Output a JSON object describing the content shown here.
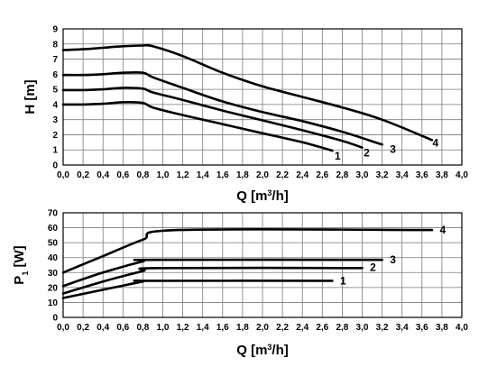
{
  "chart_data": [
    {
      "type": "line",
      "xlabel": "Q [m³/h]",
      "ylabel": "H [m]",
      "xlim": [
        0,
        4.0
      ],
      "ylim": [
        0,
        9
      ],
      "xticks": [
        "0,0",
        "0,2",
        "0,4",
        "0,6",
        "0,8",
        "1,0",
        "1,2",
        "1,4",
        "1,6",
        "1,8",
        "2,0",
        "2,2",
        "2,4",
        "2,6",
        "2,8",
        "3,0",
        "3,2",
        "3,4",
        "3,6",
        "3,8",
        "4,0"
      ],
      "yticks": [
        "0",
        "1",
        "2",
        "3",
        "4",
        "5",
        "6",
        "7",
        "8",
        "9"
      ],
      "grid": true,
      "series": [
        {
          "name": "1",
          "x": [
            0.0,
            0.2,
            0.4,
            0.6,
            0.8,
            0.9,
            1.2,
            1.6,
            2.0,
            2.4,
            2.7
          ],
          "y": [
            4.0,
            4.0,
            4.05,
            4.15,
            4.1,
            3.8,
            3.3,
            2.7,
            2.1,
            1.5,
            0.95
          ]
        },
        {
          "name": "2",
          "x": [
            0.0,
            0.2,
            0.4,
            0.6,
            0.8,
            0.9,
            1.2,
            1.6,
            2.0,
            2.4,
            2.8,
            3.0
          ],
          "y": [
            4.95,
            4.95,
            5.0,
            5.1,
            5.05,
            4.8,
            4.3,
            3.6,
            2.95,
            2.3,
            1.6,
            1.15
          ]
        },
        {
          "name": "3",
          "x": [
            0.0,
            0.2,
            0.4,
            0.6,
            0.8,
            0.9,
            1.2,
            1.6,
            2.0,
            2.4,
            2.8,
            3.2
          ],
          "y": [
            5.95,
            5.95,
            6.0,
            6.1,
            6.1,
            5.8,
            5.1,
            4.2,
            3.5,
            2.9,
            2.2,
            1.35
          ]
        },
        {
          "name": "4",
          "x": [
            0.0,
            0.2,
            0.4,
            0.6,
            0.8,
            0.9,
            1.2,
            1.6,
            2.0,
            2.4,
            2.8,
            3.2,
            3.7
          ],
          "y": [
            7.6,
            7.65,
            7.75,
            7.85,
            7.9,
            7.85,
            7.2,
            6.1,
            5.2,
            4.5,
            3.8,
            3.0,
            1.65
          ]
        }
      ]
    },
    {
      "type": "line",
      "xlabel": "Q [m³/h]",
      "ylabel": "P₁ [W]",
      "xlim": [
        0,
        4.0
      ],
      "ylim": [
        0,
        70
      ],
      "xticks": [
        "0,0",
        "0,2",
        "0,4",
        "0,6",
        "0,8",
        "1,0",
        "1,2",
        "1,4",
        "1,6",
        "1,8",
        "2,0",
        "2,2",
        "2,4",
        "2,6",
        "2,8",
        "3,0",
        "3,2",
        "3,4",
        "3,6",
        "3,8",
        "4,0"
      ],
      "yticks": [
        "0",
        "10",
        "20",
        "30",
        "40",
        "50",
        "60",
        "70"
      ],
      "grid": true,
      "series": [
        {
          "name": "1",
          "x": [
            0.0,
            0.4,
            0.8,
            0.85,
            2.7
          ],
          "y": [
            13,
            18.5,
            24,
            24.5,
            24.5
          ]
        },
        {
          "name": "2",
          "x": [
            0.0,
            0.4,
            0.8,
            0.95,
            3.0
          ],
          "y": [
            16,
            24,
            31,
            33,
            33
          ]
        },
        {
          "name": "3",
          "x": [
            0.0,
            0.4,
            0.8,
            0.9,
            3.2
          ],
          "y": [
            21,
            30,
            37.5,
            38.5,
            38.5
          ]
        },
        {
          "name": "4",
          "x": [
            0.0,
            0.4,
            0.8,
            1.15,
            3.7
          ],
          "y": [
            30,
            41,
            52,
            58.5,
            58.5
          ]
        }
      ]
    }
  ]
}
